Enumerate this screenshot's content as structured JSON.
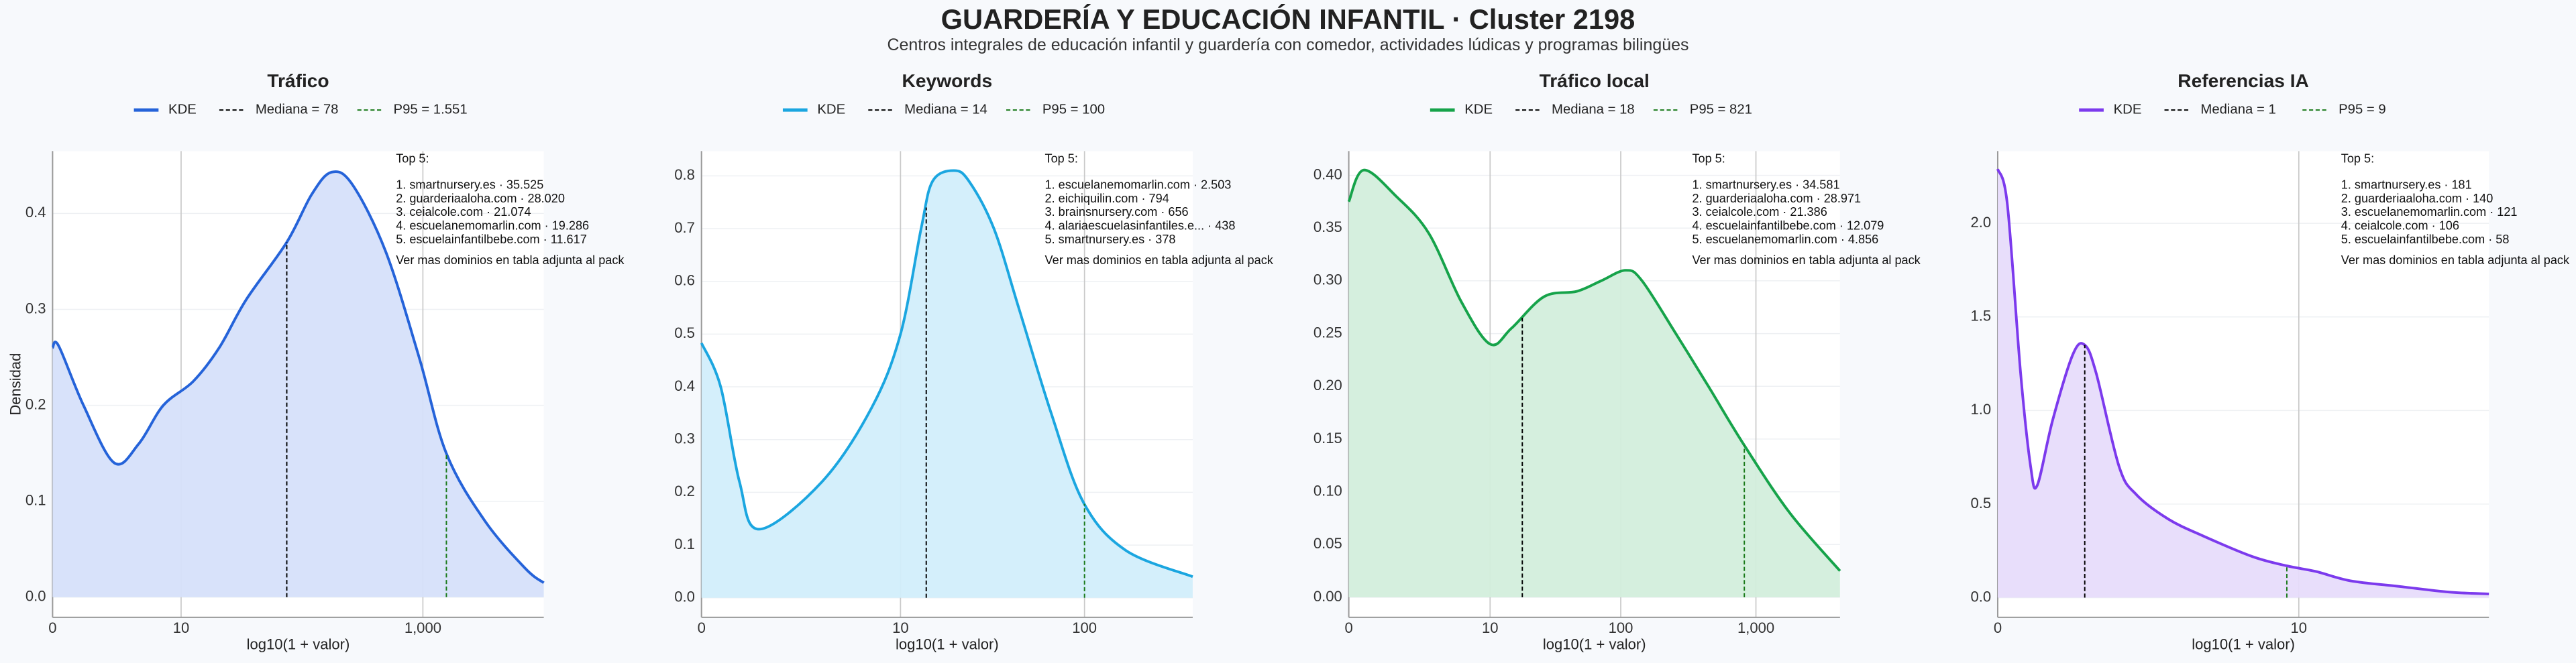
{
  "title": "GUARDERÍA Y EDUCACIÓN INFANTIL · Cluster 2198",
  "subtitle": "Centros integrales de educación infantil y guardería con comedor, actividades lúdicas y programas bilingües",
  "chart_data": [
    {
      "type": "area",
      "title": "Tráfico",
      "xlabel": "log10(1 + valor)",
      "ylabel": "Densidad",
      "xscale": "log1p",
      "xlim": [
        0,
        9549
      ],
      "ylim": [
        -0.021,
        0.465
      ],
      "xticks": [
        0,
        10,
        {
          "value": 1000,
          "label": "1,000"
        }
      ],
      "yticks": [
        {
          "value": 0,
          "label": "0.0"
        },
        0.1,
        0.2,
        0.3,
        0.4
      ],
      "grid": true,
      "series": [
        {
          "name": "KDE",
          "color": "#2563d9",
          "fill": "#d6e0fa",
          "x": [
            0,
            0.12,
            0.78,
            2.16,
            4,
            6.9,
            12.8,
            21.4,
            36,
            78,
            125,
            181,
            268,
            500,
            932,
            1548,
            3161,
            6760,
            9549
          ],
          "values": [
            0.26,
            0.262,
            0.2,
            0.14,
            0.16,
            0.2,
            0.225,
            0.26,
            0.31,
            0.37,
            0.42,
            0.443,
            0.43,
            0.36,
            0.25,
            0.15,
            0.08,
            0.03,
            0.015
          ]
        }
      ],
      "median": {
        "label": "Mediana = 78",
        "value": 78,
        "color": "#000000"
      },
      "p95": {
        "label": "P95 = 1.551",
        "value": 1551,
        "color": "#1a7a1a"
      },
      "annotation": {
        "title": "Top 5:",
        "lines": [
          "1. smartnursery.es · 35.525",
          "2. guarderiaaloha.com · 28.020",
          "3. ceialcole.com · 21.074",
          "4. escuelanemomarlin.com · 19.286",
          "5. escuelainfantilbebe.com · 11.617"
        ],
        "note": "Ver mas dominios en tabla adjunta al pack"
      }
    },
    {
      "type": "area",
      "title": "Keywords",
      "xlabel": "log10(1 + valor)",
      "xscale": "log1p",
      "xlim": [
        0,
        371
      ],
      "ylim": [
        -0.037,
        0.847
      ],
      "xticks": [
        0,
        10,
        100
      ],
      "yticks": [
        {
          "value": 0,
          "label": "0.0"
        },
        0.1,
        0.2,
        0.3,
        0.4,
        0.5,
        0.6,
        0.7,
        0.8
      ],
      "grid": true,
      "series": [
        {
          "name": "KDE",
          "color": "#1ba6e0",
          "fill": "#d2eefb",
          "x": [
            0,
            0.26,
            0.58,
            1.0,
            3.27,
            6.76,
            10,
            13.1,
            15.2,
            19.9,
            24.1,
            32.9,
            44.7,
            66.6,
            99,
            165,
            371
          ],
          "values": [
            0.483,
            0.4,
            0.22,
            0.13,
            0.22,
            0.36,
            0.5,
            0.7,
            0.79,
            0.81,
            0.79,
            0.7,
            0.55,
            0.35,
            0.18,
            0.09,
            0.04
          ]
        }
      ],
      "median": {
        "label": "Mediana = 14",
        "value": 14,
        "color": "#000000"
      },
      "p95": {
        "label": "P95 = 100",
        "value": 100,
        "color": "#1a7a1a"
      },
      "annotation": {
        "title": "Top 5:",
        "lines": [
          "1. escuelanemomarlin.com · 2.503",
          "2. eichiquilin.com · 794",
          "3. brainsnursery.com · 656",
          "4. alariaescuelasinfantiles.e... · 438",
          "5. smartnursery.es · 378"
        ],
        "note": "Ver mas dominios en tabla adjunta al pack"
      }
    },
    {
      "type": "area",
      "title": "Tráfico local",
      "xlabel": "log10(1 + valor)",
      "xscale": "log1p",
      "xlim": [
        0,
        4168
      ],
      "ylim": [
        -0.019,
        0.423
      ],
      "xticks": [
        0,
        10,
        100,
        {
          "value": 1000,
          "label": "1,000"
        }
      ],
      "yticks": [
        {
          "value": 0,
          "label": "0.00"
        },
        0.05,
        {
          "value": 0.1,
          "label": "0.10"
        },
        0.15,
        {
          "value": 0.2,
          "label": "0.20"
        },
        0.25,
        {
          "value": 0.3,
          "label": "0.30"
        },
        0.35,
        {
          "value": 0.4,
          "label": "0.40"
        }
      ],
      "grid": true,
      "series": [
        {
          "name": "KDE",
          "color": "#16a34a",
          "fill": "#d3eedc",
          "x": [
            0,
            0.29,
            1.24,
            2.89,
            5.76,
            10,
            14.8,
            26.5,
            46.9,
            71.4,
            109,
            144,
            256,
            446,
            812,
            1777,
            4168
          ],
          "values": [
            0.375,
            0.405,
            0.38,
            0.345,
            0.28,
            0.24,
            0.255,
            0.285,
            0.29,
            0.3,
            0.31,
            0.3,
            0.25,
            0.2,
            0.145,
            0.08,
            0.025
          ]
        }
      ],
      "median": {
        "label": "Mediana = 18",
        "value": 18,
        "color": "#000000"
      },
      "p95": {
        "label": "P95 = 821",
        "value": 821,
        "color": "#1a7a1a"
      },
      "annotation": {
        "title": "Top 5:",
        "lines": [
          "1. smartnursery.es · 34.581",
          "2. guarderiaaloha.com · 28.971",
          "3. ceialcole.com · 21.386",
          "4. escuelainfantilbebe.com · 12.079",
          "5. escuelanemomarlin.com · 4.856"
        ],
        "note": "Ver mas dominios en tabla adjunta al pack"
      }
    },
    {
      "type": "area",
      "title": "Referencias IA",
      "xlabel": "log10(1 + valor)",
      "xscale": "log1p",
      "xlim": [
        0,
        49
      ],
      "ylim": [
        -0.105,
        2.386
      ],
      "xticks": [
        0,
        10
      ],
      "yticks": [
        {
          "value": 0,
          "label": "0.0"
        },
        0.5,
        {
          "value": 1,
          "label": "1.0"
        },
        1.5,
        {
          "value": 2,
          "label": "2.0"
        }
      ],
      "grid": true,
      "series": [
        {
          "name": "KDE",
          "color": "#7c3aed",
          "fill": "#e7dcfb",
          "x": [
            0,
            0.08,
            0.2,
            0.3,
            0.37,
            0.55,
            0.82,
            1.0,
            1.19,
            1.63,
            2.02,
            2.89,
            4.13,
            6.59,
            9,
            11.6,
            15.6,
            23.5,
            35.3,
            49
          ],
          "values": [
            2.29,
            2.1,
            1.2,
            0.7,
            0.6,
            0.95,
            1.3,
            1.35,
            1.2,
            0.7,
            0.55,
            0.42,
            0.33,
            0.22,
            0.17,
            0.14,
            0.09,
            0.06,
            0.03,
            0.02
          ]
        }
      ],
      "median": {
        "label": "Mediana = 1",
        "value": 1,
        "color": "#000000"
      },
      "p95": {
        "label": "P95 = 9",
        "value": 9,
        "color": "#1a7a1a"
      },
      "annotation": {
        "title": "Top 5:",
        "lines": [
          "1. smartnursery.es · 181",
          "2. guarderiaaloha.com · 140",
          "3. escuelanemomarlin.com · 121",
          "4. ceialcole.com · 106",
          "5. escuelainfantilbebe.com · 58"
        ],
        "note": "Ver mas dominios en tabla adjunta al pack"
      }
    }
  ]
}
